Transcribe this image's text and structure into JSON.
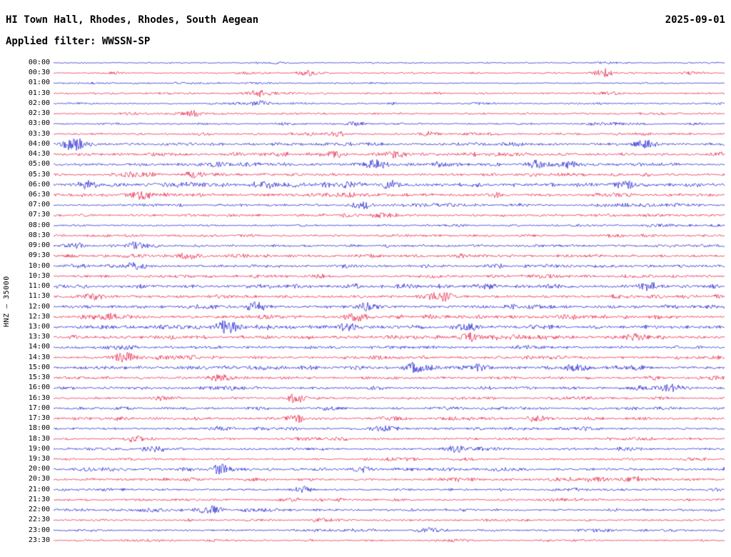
{
  "header": {
    "title": "HI Town Hall, Rhodes, Rhodes, South Aegean",
    "date": "2025-09-01",
    "filter_line": "Applied filter: WWSSN-SP"
  },
  "chart_data": {
    "type": "line",
    "subtype": "seismogram-helicorder",
    "title": "HI Town Hall, Rhodes, Rhodes, South Aegean",
    "date": "2025-09-01",
    "filter": "WWSSN-SP",
    "channel_scale_label": "HNZ – 35000",
    "minutes_per_row": 30,
    "grid": false,
    "legend": false,
    "rows": [
      "00:00",
      "00:30",
      "01:00",
      "01:30",
      "02:00",
      "02:30",
      "03:00",
      "03:30",
      "04:00",
      "04:30",
      "05:00",
      "05:30",
      "06:00",
      "06:30",
      "07:00",
      "07:30",
      "08:00",
      "08:30",
      "09:00",
      "09:30",
      "10:00",
      "10:30",
      "11:00",
      "11:30",
      "12:00",
      "12:30",
      "13:00",
      "13:30",
      "14:00",
      "14:30",
      "15:00",
      "15:30",
      "16:00",
      "16:30",
      "17:00",
      "17:30",
      "18:00",
      "18:30",
      "19:00",
      "19:30",
      "20:00",
      "20:30",
      "21:00",
      "21:30",
      "22:00",
      "22:30",
      "23:00",
      "23:30"
    ],
    "trace_colors": {
      "even": "#1515cf",
      "odd": "#e8143c"
    },
    "row_amplitude": [
      0.8,
      1.0,
      0.8,
      1.0,
      1.0,
      1.0,
      1.0,
      1.2,
      1.6,
      1.6,
      1.8,
      1.5,
      2.2,
      1.8,
      1.2,
      1.4,
      1.1,
      1.3,
      1.5,
      1.6,
      1.7,
      1.5,
      2.0,
      1.7,
      1.8,
      1.8,
      2.0,
      1.9,
      1.6,
      1.7,
      1.9,
      1.7,
      1.5,
      1.4,
      1.3,
      1.5,
      1.4,
      1.3,
      1.4,
      1.2,
      1.6,
      1.5,
      1.3,
      1.2,
      1.4,
      1.1,
      1.2,
      1.0
    ],
    "events": [
      [
        1,
        0.38,
        4
      ],
      [
        1,
        0.82,
        6
      ],
      [
        3,
        0.31,
        5
      ],
      [
        4,
        0.31,
        4
      ],
      [
        5,
        0.21,
        4
      ],
      [
        6,
        0.45,
        3
      ],
      [
        7,
        0.42,
        3
      ],
      [
        7,
        0.56,
        2.5
      ],
      [
        8,
        0.03,
        6
      ],
      [
        8,
        0.88,
        4
      ],
      [
        9,
        0.42,
        3
      ],
      [
        9,
        0.51,
        3.5
      ],
      [
        10,
        0.48,
        4
      ],
      [
        10,
        0.72,
        3
      ],
      [
        10,
        0.77,
        3
      ],
      [
        11,
        0.21,
        3
      ],
      [
        12,
        0.05,
        3
      ],
      [
        12,
        0.5,
        2.5
      ],
      [
        12,
        0.85,
        2.5
      ],
      [
        13,
        0.13,
        3.5
      ],
      [
        14,
        0.46,
        5
      ],
      [
        15,
        0.49,
        3
      ],
      [
        18,
        0.03,
        3
      ],
      [
        18,
        0.12,
        3.5
      ],
      [
        19,
        0.2,
        3
      ],
      [
        20,
        0.12,
        3.5
      ],
      [
        22,
        0.89,
        3
      ],
      [
        23,
        0.06,
        3
      ],
      [
        23,
        0.58,
        3
      ],
      [
        24,
        0.3,
        3.5
      ],
      [
        24,
        0.47,
        3
      ],
      [
        25,
        0.45,
        3.5
      ],
      [
        25,
        0.77,
        2.5
      ],
      [
        26,
        0.26,
        4
      ],
      [
        26,
        0.44,
        3
      ],
      [
        26,
        0.62,
        3
      ],
      [
        27,
        0.62,
        3.5
      ],
      [
        27,
        0.87,
        3
      ],
      [
        29,
        0.11,
        3.5
      ],
      [
        30,
        0.54,
        3.5
      ],
      [
        30,
        0.63,
        3
      ],
      [
        30,
        0.78,
        3
      ],
      [
        31,
        0.25,
        3
      ],
      [
        32,
        0.92,
        3.5
      ],
      [
        33,
        0.36,
        4
      ],
      [
        35,
        0.36,
        4
      ],
      [
        35,
        0.72,
        3
      ],
      [
        36,
        0.25,
        3.5
      ],
      [
        37,
        0.12,
        3.5
      ],
      [
        38,
        0.15,
        3.5
      ],
      [
        38,
        0.6,
        3
      ],
      [
        40,
        0.25,
        4
      ],
      [
        40,
        0.46,
        3.5
      ],
      [
        41,
        0.81,
        3.5
      ],
      [
        41,
        0.86,
        3.5
      ],
      [
        42,
        0.37,
        4
      ],
      [
        44,
        0.23,
        3.5
      ],
      [
        46,
        0.56,
        3
      ]
    ]
  }
}
